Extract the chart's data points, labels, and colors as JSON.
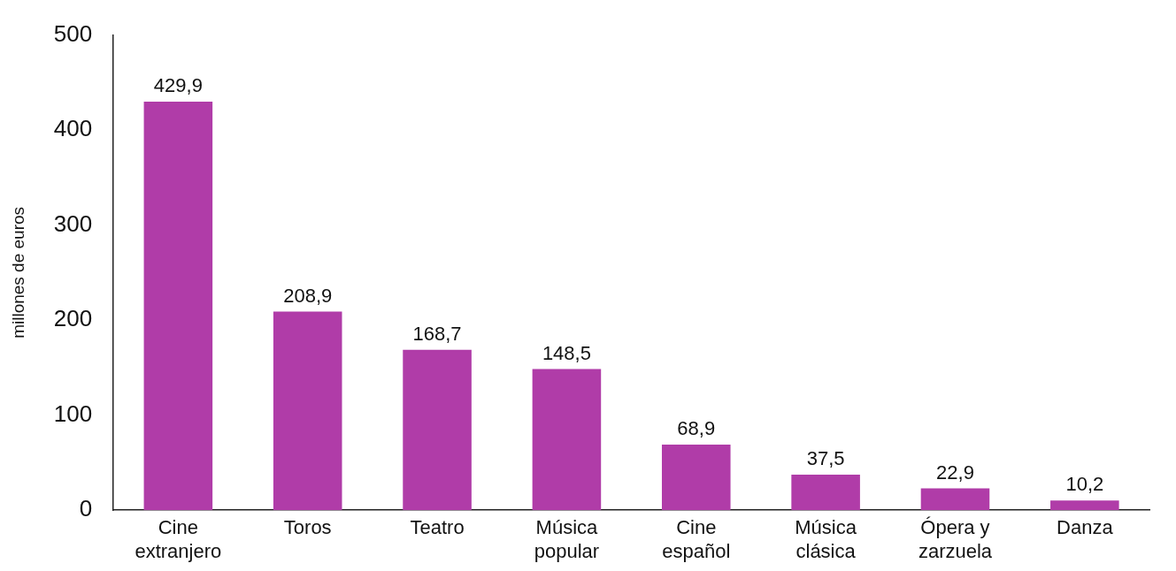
{
  "chart_data": {
    "type": "bar",
    "ylabel": "millones de euros",
    "categories": [
      "Cine\nextranjero",
      "Toros",
      "Teatro",
      "Música\npopular",
      "Cine\nespañol",
      "Música\nclásica",
      "Ópera y\nzarzuela",
      "Danza"
    ],
    "values": [
      429.9,
      208.9,
      168.7,
      148.5,
      68.9,
      37.5,
      22.9,
      10.2
    ],
    "value_labels": [
      "429,9",
      "208,9",
      "168,7",
      "148,5",
      "68,9",
      "37,5",
      "22,9",
      "10,2"
    ],
    "color": "#b03ca8",
    "ylim": [
      0,
      500
    ],
    "yticks": [
      0,
      100,
      200,
      300,
      400,
      500
    ],
    "grid": false,
    "legend": false
  }
}
